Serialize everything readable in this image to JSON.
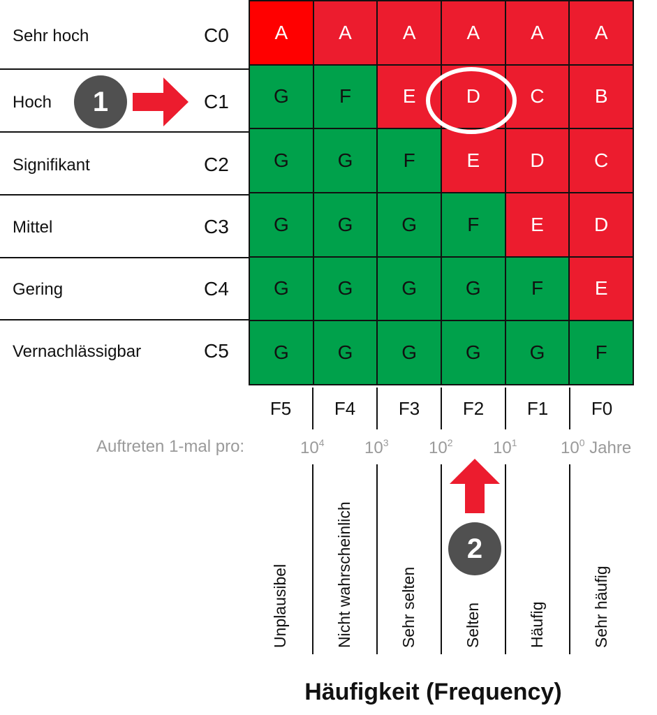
{
  "consequence_rows": [
    {
      "name": "Sehr hoch",
      "code": "C0"
    },
    {
      "name": "Hoch",
      "code": "C1"
    },
    {
      "name": "Signifikant",
      "code": "C2"
    },
    {
      "name": "Mittel",
      "code": "C3"
    },
    {
      "name": "Gering",
      "code": "C4"
    },
    {
      "name": "Vernachlässigbar",
      "code": "C5"
    }
  ],
  "frequency_columns": [
    {
      "code": "F5",
      "label": "Unplausibel"
    },
    {
      "code": "F4",
      "label": "Nicht wahrscheinlich"
    },
    {
      "code": "F3",
      "label": "Sehr selten"
    },
    {
      "code": "F2",
      "label": "Selten"
    },
    {
      "code": "F1",
      "label": "Häufig"
    },
    {
      "code": "F0",
      "label": "Sehr häufig"
    }
  ],
  "matrix": [
    [
      {
        "v": "A",
        "c": "bright"
      },
      {
        "v": "A",
        "c": "red"
      },
      {
        "v": "A",
        "c": "red"
      },
      {
        "v": "A",
        "c": "red"
      },
      {
        "v": "A",
        "c": "red"
      },
      {
        "v": "A",
        "c": "red"
      }
    ],
    [
      {
        "v": "G",
        "c": "green"
      },
      {
        "v": "F",
        "c": "green"
      },
      {
        "v": "E",
        "c": "red"
      },
      {
        "v": "D",
        "c": "red"
      },
      {
        "v": "C",
        "c": "red"
      },
      {
        "v": "B",
        "c": "red"
      }
    ],
    [
      {
        "v": "G",
        "c": "green"
      },
      {
        "v": "G",
        "c": "green"
      },
      {
        "v": "F",
        "c": "green"
      },
      {
        "v": "E",
        "c": "red"
      },
      {
        "v": "D",
        "c": "red"
      },
      {
        "v": "C",
        "c": "red"
      }
    ],
    [
      {
        "v": "G",
        "c": "green"
      },
      {
        "v": "G",
        "c": "green"
      },
      {
        "v": "G",
        "c": "green"
      },
      {
        "v": "F",
        "c": "green"
      },
      {
        "v": "E",
        "c": "red"
      },
      {
        "v": "D",
        "c": "red"
      }
    ],
    [
      {
        "v": "G",
        "c": "green"
      },
      {
        "v": "G",
        "c": "green"
      },
      {
        "v": "G",
        "c": "green"
      },
      {
        "v": "G",
        "c": "green"
      },
      {
        "v": "F",
        "c": "green"
      },
      {
        "v": "E",
        "c": "red"
      }
    ],
    [
      {
        "v": "G",
        "c": "green"
      },
      {
        "v": "G",
        "c": "green"
      },
      {
        "v": "G",
        "c": "green"
      },
      {
        "v": "G",
        "c": "green"
      },
      {
        "v": "G",
        "c": "green"
      },
      {
        "v": "F",
        "c": "green"
      }
    ]
  ],
  "highlighted_cell": {
    "row": "C1",
    "column": "F2",
    "value": "D"
  },
  "occurrence": {
    "label": "Auftreten 1-mal pro:",
    "unit": "Jahre",
    "exponents": [
      "4",
      "3",
      "2",
      "1",
      "0"
    ]
  },
  "badges": {
    "badge_1": "1",
    "badge_2": "2"
  },
  "axis_title": "Häufigkeit (Frequency)",
  "colors": {
    "red": "#ec1c2e",
    "bright_red": "#ff0000",
    "green": "#00a14b",
    "badge": "#505050",
    "occurrence_text": "#9a9a9a"
  }
}
